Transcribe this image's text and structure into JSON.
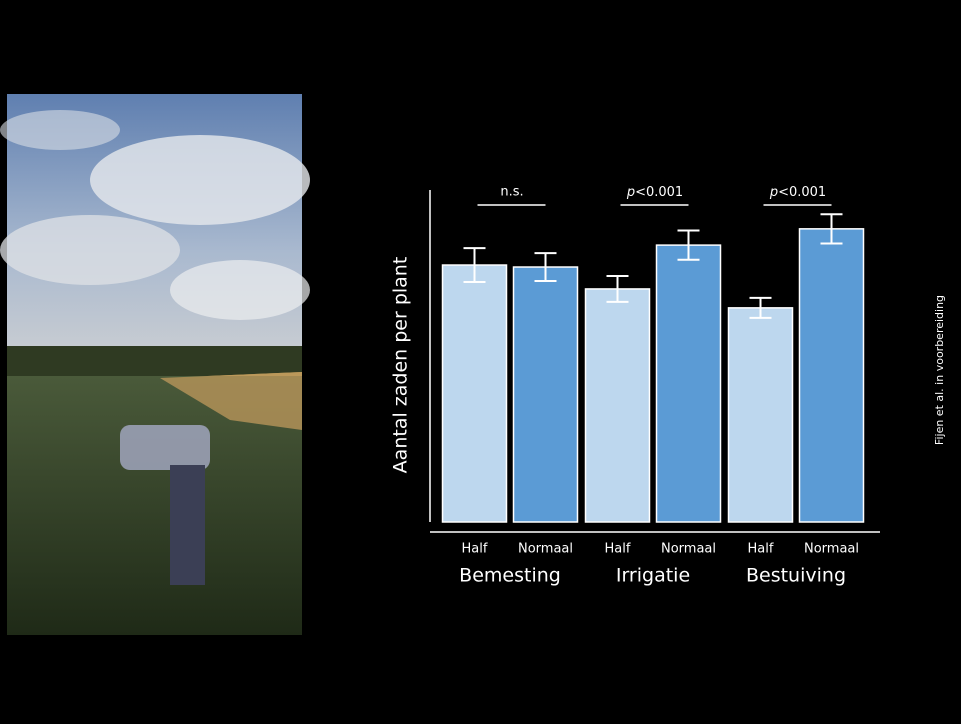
{
  "chart_data": {
    "type": "bar",
    "y_label": "Aantal zaden per plant",
    "categories": [
      "Bemesting",
      "Irrigatie",
      "Bestuiving"
    ],
    "series": [
      {
        "name": "Half",
        "color": "#bdd7ee",
        "values": [
          77.4,
          70.2,
          64.5
        ],
        "errors": [
          5.1,
          3.9,
          3.0
        ]
      },
      {
        "name": "Normaal",
        "color": "#5b9bd5",
        "values": [
          76.8,
          83.4,
          88.3
        ],
        "errors": [
          4.2,
          4.4,
          4.4
        ]
      }
    ],
    "annotations": [
      "n.s.",
      "p<0.001",
      "p<0.001"
    ],
    "ylim": [
      0,
      100
    ],
    "source": "Fijen et al. in voorbereiding"
  }
}
